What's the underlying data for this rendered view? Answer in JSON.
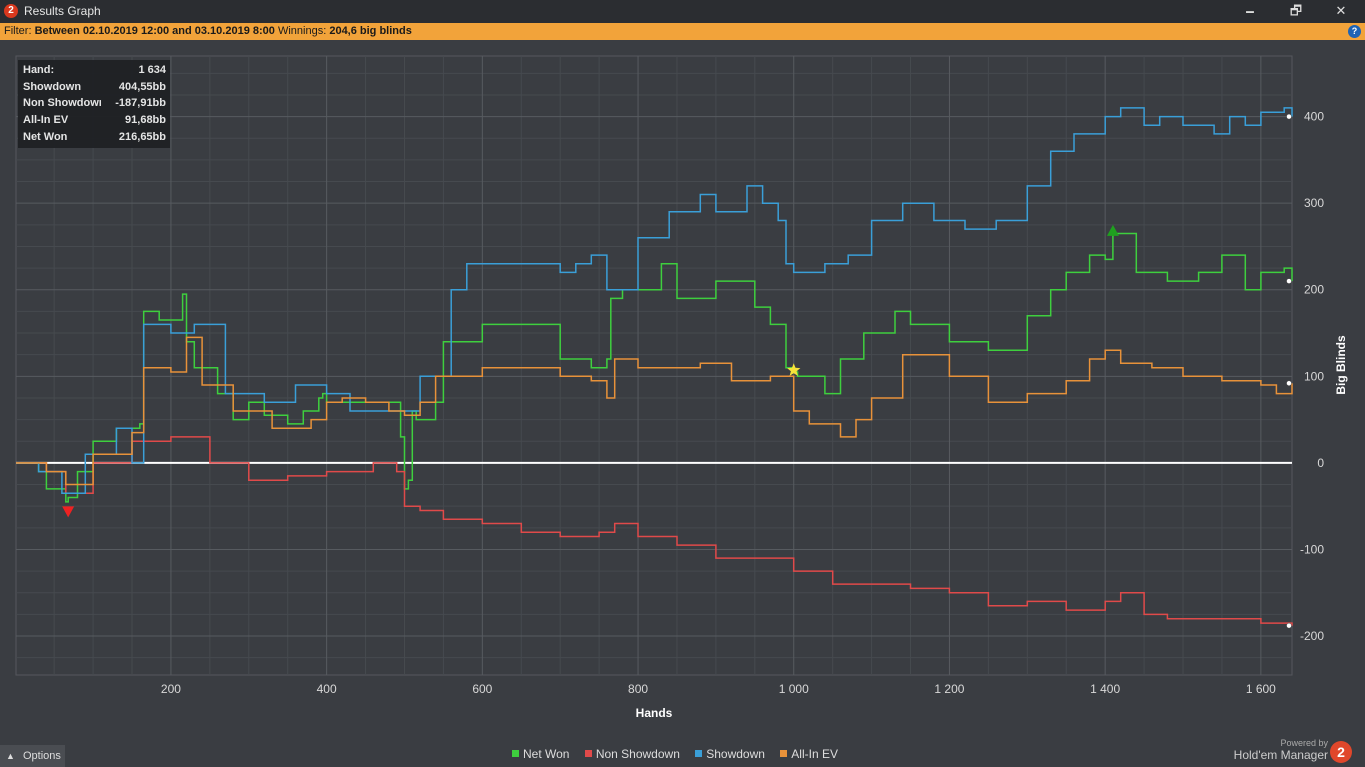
{
  "window": {
    "title": "Results Graph",
    "app_icon": "2",
    "buttons": {
      "minimize": "🗕",
      "restore": "🗗",
      "close": "✕"
    }
  },
  "filter": {
    "prefix": "Filter:",
    "range": "Between 02.10.2019 12:00 and 03.10.2019 8:00",
    "winnings_label": "Winnings:",
    "winnings_value": "204,6 big blinds"
  },
  "tooltip": [
    {
      "label": "Hand:",
      "value": "1 634"
    },
    {
      "label": "Showdown",
      "value": "404,55bb"
    },
    {
      "label": "Non Showdown",
      "value": "-187,91bb"
    },
    {
      "label": "All-In EV",
      "value": "91,68bb"
    },
    {
      "label": "Net Won",
      "value": "216,65bb"
    }
  ],
  "options_label": "Options",
  "brand": {
    "powered_by": "Powered by",
    "name": "Hold'em Manager",
    "logo": "2"
  },
  "chart_data": {
    "type": "line",
    "xlabel": "Hands",
    "ylabel": "Big Blinds",
    "xlim": [
      1,
      1640
    ],
    "ylim": [
      -245,
      470
    ],
    "x_ticks": [
      200,
      400,
      600,
      800,
      1000,
      1200,
      1400,
      1600
    ],
    "x_tick_labels": [
      "200",
      "400",
      "600",
      "800",
      "1 000",
      "1 200",
      "1 400",
      "1 600"
    ],
    "y_ticks": [
      -200,
      -100,
      0,
      100,
      200,
      300,
      400
    ],
    "y_tick_labels": [
      "-200",
      "-100",
      "0",
      "100",
      "200",
      "300",
      "400"
    ],
    "grid": true,
    "legend_position": "bottom",
    "series": [
      {
        "name": "Net Won",
        "color": "#3ecf3e",
        "x": [
          1,
          30,
          40,
          65,
          68,
          80,
          100,
          130,
          160,
          165,
          185,
          215,
          220,
          230,
          260,
          280,
          300,
          320,
          350,
          370,
          390,
          395,
          400,
          480,
          495,
          500,
          505,
          510,
          515,
          540,
          550,
          600,
          700,
          740,
          760,
          765,
          780,
          830,
          850,
          900,
          950,
          970,
          990,
          1000,
          1005,
          1040,
          1060,
          1090,
          1130,
          1150,
          1200,
          1250,
          1300,
          1330,
          1350,
          1380,
          1400,
          1410,
          1440,
          1480,
          1520,
          1550,
          1580,
          1600,
          1630,
          1640
        ],
        "y": [
          0,
          -10,
          -30,
          -45,
          -40,
          -10,
          25,
          40,
          45,
          175,
          165,
          195,
          140,
          110,
          80,
          50,
          70,
          55,
          45,
          60,
          75,
          80,
          70,
          70,
          30,
          -30,
          -20,
          60,
          50,
          70,
          140,
          160,
          120,
          110,
          120,
          190,
          200,
          230,
          190,
          210,
          180,
          160,
          110,
          105,
          100,
          80,
          120,
          150,
          175,
          160,
          140,
          130,
          170,
          200,
          220,
          240,
          235,
          265,
          220,
          210,
          220,
          240,
          200,
          220,
          225,
          210
        ]
      },
      {
        "name": "Non Showdown",
        "color": "#e04a4a",
        "x": [
          1,
          40,
          65,
          100,
          150,
          200,
          250,
          300,
          350,
          400,
          460,
          490,
          500,
          520,
          550,
          600,
          650,
          700,
          750,
          770,
          800,
          850,
          900,
          950,
          1000,
          1050,
          1100,
          1150,
          1200,
          1250,
          1300,
          1350,
          1400,
          1420,
          1450,
          1480,
          1500,
          1550,
          1600,
          1640
        ],
        "y": [
          0,
          -10,
          -35,
          0,
          25,
          30,
          0,
          -20,
          -15,
          -10,
          0,
          -10,
          -50,
          -55,
          -65,
          -70,
          -80,
          -85,
          -80,
          -70,
          -85,
          -95,
          -110,
          -110,
          -125,
          -140,
          -140,
          -145,
          -150,
          -165,
          -160,
          -170,
          -160,
          -150,
          -175,
          -180,
          -180,
          -180,
          -185,
          -188
        ]
      },
      {
        "name": "Showdown",
        "color": "#3a9fd8",
        "x": [
          1,
          30,
          60,
          90,
          130,
          150,
          165,
          200,
          230,
          270,
          320,
          360,
          400,
          430,
          520,
          560,
          580,
          700,
          720,
          740,
          760,
          800,
          840,
          880,
          900,
          940,
          960,
          980,
          990,
          1000,
          1040,
          1070,
          1100,
          1140,
          1180,
          1220,
          1260,
          1300,
          1330,
          1360,
          1400,
          1420,
          1450,
          1470,
          1500,
          1540,
          1560,
          1580,
          1600,
          1630,
          1640
        ],
        "y": [
          0,
          -10,
          -35,
          10,
          40,
          0,
          160,
          150,
          160,
          80,
          70,
          90,
          80,
          60,
          100,
          200,
          230,
          220,
          230,
          240,
          200,
          260,
          290,
          310,
          290,
          320,
          300,
          280,
          230,
          220,
          230,
          240,
          280,
          300,
          280,
          270,
          280,
          320,
          360,
          380,
          400,
          410,
          390,
          400,
          390,
          380,
          400,
          390,
          405,
          410,
          400
        ]
      },
      {
        "name": "All-In EV",
        "color": "#e8923a",
        "x": [
          1,
          40,
          65,
          100,
          150,
          165,
          200,
          220,
          240,
          280,
          330,
          380,
          400,
          420,
          450,
          480,
          500,
          520,
          540,
          600,
          700,
          740,
          760,
          770,
          800,
          880,
          920,
          970,
          990,
          1000,
          1020,
          1060,
          1080,
          1100,
          1140,
          1200,
          1250,
          1300,
          1350,
          1380,
          1400,
          1420,
          1460,
          1500,
          1550,
          1600,
          1620,
          1640
        ],
        "y": [
          0,
          -10,
          -25,
          10,
          35,
          110,
          105,
          145,
          90,
          60,
          40,
          50,
          70,
          75,
          70,
          60,
          55,
          70,
          100,
          110,
          100,
          95,
          75,
          120,
          110,
          115,
          95,
          100,
          100,
          60,
          45,
          30,
          50,
          75,
          125,
          100,
          70,
          80,
          95,
          120,
          130,
          115,
          110,
          100,
          95,
          90,
          80,
          92
        ]
      }
    ],
    "markers": [
      {
        "type": "triangle-down",
        "color": "#ee2222",
        "x": 68,
        "y": -56
      },
      {
        "type": "star",
        "color": "#f6e33a",
        "x": 1000,
        "y": 107
      },
      {
        "type": "triangle-up",
        "color": "#1fa01f",
        "x": 1410,
        "y": 268
      }
    ]
  }
}
